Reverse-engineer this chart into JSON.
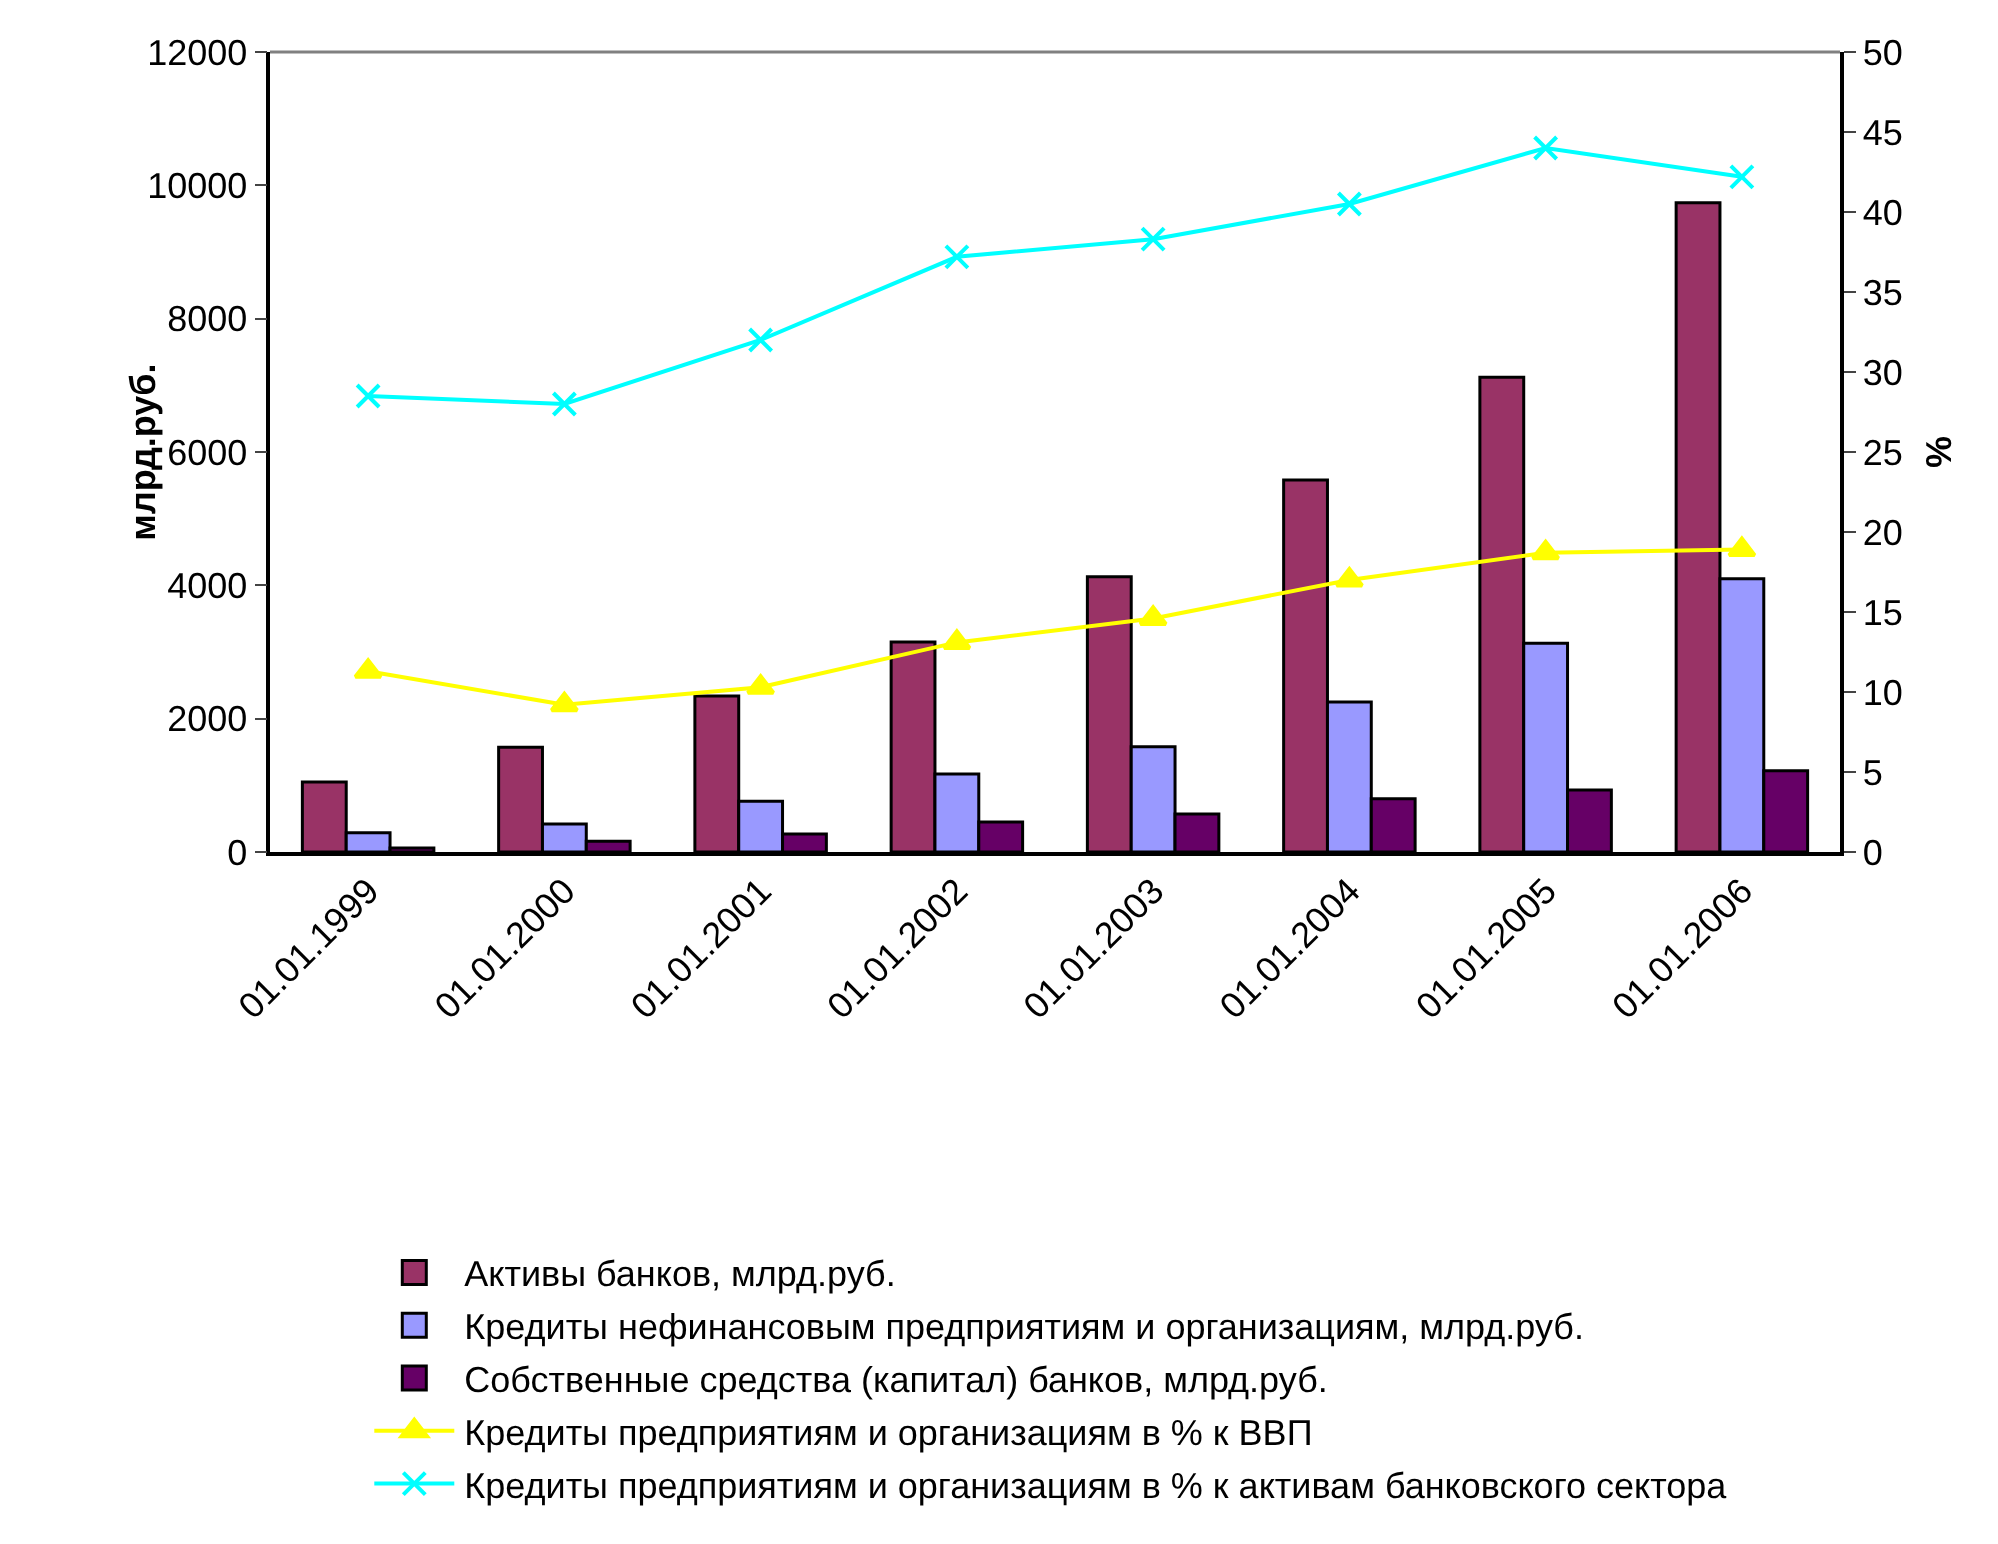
{
  "chart_data": {
    "type": "bar",
    "categories": [
      "01.01.1999",
      "01.01.2000",
      "01.01.2001",
      "01.01.2002",
      "01.01.2003",
      "01.01.2004",
      "01.01.2005",
      "01.01.2006"
    ],
    "ylabel": "млрд.руб.",
    "y2label": "%",
    "ylim": [
      0,
      12000
    ],
    "yticks": [
      0,
      2000,
      4000,
      6000,
      8000,
      10000,
      12000
    ],
    "y2lim": [
      0,
      50
    ],
    "y2ticks": [
      0,
      5,
      10,
      15,
      20,
      25,
      30,
      35,
      40,
      45,
      50
    ],
    "grid": false,
    "legend": "bottom",
    "series": [
      {
        "name": "Активы банков, млрд.руб.",
        "color": "#993366",
        "values": [
          1050,
          1570,
          2340,
          3150,
          4130,
          5580,
          7120,
          9740
        ]
      },
      {
        "name": "Кредиты нефинансовым предприятиям и организациям, млрд.руб.",
        "color": "#9999ff",
        "values": [
          290,
          420,
          760,
          1170,
          1580,
          2250,
          3130,
          4100
        ]
      },
      {
        "name": "Собственные средства (капитал) банков, млрд.руб.",
        "color": "#660066",
        "values": [
          60,
          160,
          270,
          450,
          570,
          800,
          930,
          1220
        ]
      },
      {
        "name": "Кредиты предприятиям и организациям в % к ВВП",
        "type": "line",
        "axis": "y2",
        "marker": "triangle",
        "color": "#ffff00",
        "values": [
          11.3,
          9.2,
          10.3,
          13.1,
          14.6,
          17.0,
          18.7,
          18.9
        ]
      },
      {
        "name": "Кредиты предприятиям и организациям в % к активам банковского сектора",
        "type": "line",
        "axis": "y2",
        "marker": "cross",
        "color": "#00ffff",
        "values": [
          28.5,
          28.0,
          32.0,
          37.2,
          38.3,
          40.5,
          44.0,
          42.2
        ]
      }
    ]
  }
}
